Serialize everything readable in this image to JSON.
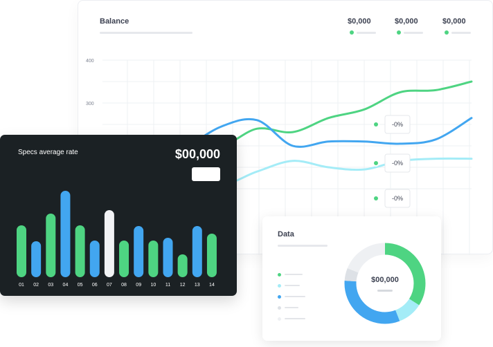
{
  "balance": {
    "title": "Balance",
    "stats": [
      {
        "value": "$0,000",
        "dot_color": "#4ed482"
      },
      {
        "value": "$0,000",
        "dot_color": "#4ed482"
      },
      {
        "value": "$0,000",
        "dot_color": "#4ed482"
      }
    ],
    "tooltips": [
      "-0%",
      "-0%",
      "-0%"
    ]
  },
  "specs": {
    "title": "Specs average rate",
    "value": "$00,000"
  },
  "data_card": {
    "title": "Data",
    "center_value": "$00,000",
    "legend_colors": [
      "#4ed482",
      "#a4ecf7",
      "#42a6f0",
      "#dde1e6",
      "#eef0f3"
    ]
  },
  "colors": {
    "green": "#4ed482",
    "blue": "#42a6f0",
    "light_blue": "#a4ecf7",
    "white_bar": "#f2f3f5",
    "dark": "#1b2124"
  },
  "chart_data": [
    {
      "type": "line",
      "title": "Balance",
      "ylim": [
        0,
        400
      ],
      "yticks": [
        400,
        300
      ],
      "grid": true,
      "series": [
        {
          "color": "#4ed482",
          "values": [
            120,
            150,
            165,
            215,
            200,
            240,
            232,
            265,
            285,
            325,
            330,
            350
          ]
        },
        {
          "color": "#42a6f0",
          "values": [
            100,
            130,
            150,
            195,
            245,
            260,
            200,
            210,
            210,
            205,
            215,
            265
          ]
        },
        {
          "color": "#a4ecf7",
          "values": [
            60,
            80,
            95,
            140,
            110,
            140,
            165,
            150,
            145,
            165,
            170,
            170
          ]
        }
      ]
    },
    {
      "type": "bar",
      "title": "Specs average rate",
      "categories": [
        "01",
        "02",
        "03",
        "04",
        "05",
        "06",
        "07",
        "08",
        "09",
        "10",
        "11",
        "12",
        "13",
        "14"
      ],
      "values": [
        75,
        52,
        92,
        125,
        75,
        53,
        97,
        53,
        74,
        53,
        57,
        33,
        74,
        63
      ],
      "colors": [
        "#4ed482",
        "#42a6f0",
        "#4ed482",
        "#42a6f0",
        "#4ed482",
        "#42a6f0",
        "#f2f3f5",
        "#4ed482",
        "#42a6f0",
        "#4ed482",
        "#42a6f0",
        "#4ed482",
        "#42a6f0",
        "#4ed482"
      ]
    },
    {
      "type": "pie",
      "title": "Data",
      "values": [
        34,
        10,
        32,
        5,
        19
      ],
      "colors": [
        "#4ed482",
        "#a4ecf7",
        "#42a6f0",
        "#dde1e6",
        "#eef0f3"
      ]
    }
  ]
}
